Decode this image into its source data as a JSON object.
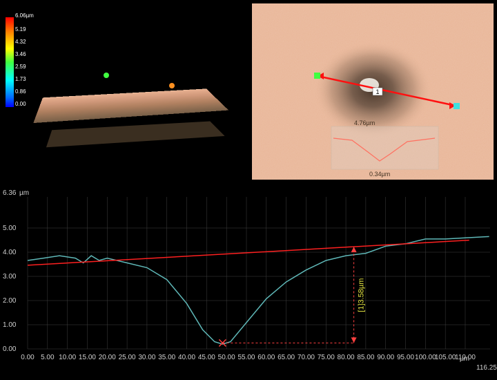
{
  "colorScale": {
    "unit": "µm",
    "max_label": "6.06µm",
    "labels": [
      "5.19",
      "4.32",
      "3.46",
      "2.59",
      "1.73",
      "0.86",
      "0.00"
    ],
    "colors": [
      "#ff0000",
      "#ff7700",
      "#ffff00",
      "#40ff40",
      "#00ffff",
      "#0066ff",
      "#0000ff"
    ]
  },
  "topdown": {
    "background_color": "#e8b596",
    "dark_spot_color": "#6b5240",
    "arrow_color": "#ff1010",
    "marker_green": "#40ff40",
    "marker_cyan": "#40e0e0",
    "inset_top_label": "4.76µm",
    "inset_bottom_label": "0.34µm",
    "inset_line_color": "#ff7060",
    "center_label": "1",
    "center_label_bg": "#ffffff"
  },
  "profile_chart": {
    "type": "line",
    "y_unit": "µm",
    "x_unit": "µm",
    "y_max_label": "6.36",
    "x_max_label": "116.25",
    "ylim": [
      0,
      6.36
    ],
    "xlim": [
      0,
      116.25
    ],
    "y_ticks": [
      "0.00",
      "1.00",
      "2.00",
      "3.00",
      "4.00",
      "5.00"
    ],
    "x_ticks": [
      "0.00",
      "5.00",
      "10.00",
      "15.00",
      "20.00",
      "25.00",
      "30.00",
      "35.00",
      "40.00",
      "45.00",
      "50.00",
      "55.00",
      "60.00",
      "65.00",
      "70.00",
      "75.00",
      "80.00",
      "85.00",
      "90.00",
      "95.00",
      "100.00",
      "105.00",
      "110.00"
    ],
    "background_color": "#000000",
    "grid_color": "#404040",
    "axis_text_color": "#d0d0d0",
    "profile_color": "#5fb8b8",
    "reference_color": "#ff2020",
    "measurement_color": "#ff4040",
    "profile_points": [
      [
        0,
        3.7
      ],
      [
        4,
        3.8
      ],
      [
        8,
        3.9
      ],
      [
        12,
        3.8
      ],
      [
        14,
        3.6
      ],
      [
        16,
        3.9
      ],
      [
        18,
        3.7
      ],
      [
        20,
        3.8
      ],
      [
        25,
        3.6
      ],
      [
        30,
        3.4
      ],
      [
        35,
        2.9
      ],
      [
        40,
        1.9
      ],
      [
        44,
        0.8
      ],
      [
        47,
        0.3
      ],
      [
        49,
        0.2
      ],
      [
        51,
        0.3
      ],
      [
        55,
        1.1
      ],
      [
        60,
        2.1
      ],
      [
        65,
        2.8
      ],
      [
        70,
        3.3
      ],
      [
        75,
        3.7
      ],
      [
        80,
        3.9
      ],
      [
        85,
        4.0
      ],
      [
        90,
        4.3
      ],
      [
        95,
        4.4
      ],
      [
        100,
        4.6
      ],
      [
        105,
        4.6
      ],
      [
        110,
        4.65
      ],
      [
        116,
        4.7
      ]
    ],
    "reference_line": {
      "x1": 0,
      "y1": 3.5,
      "x2": 111,
      "y2": 4.55
    },
    "measurement": {
      "label": "[1]3.58µm",
      "from": [
        49,
        0.25
      ],
      "to_x": 82,
      "mark_x_color": "#ff4040"
    }
  }
}
